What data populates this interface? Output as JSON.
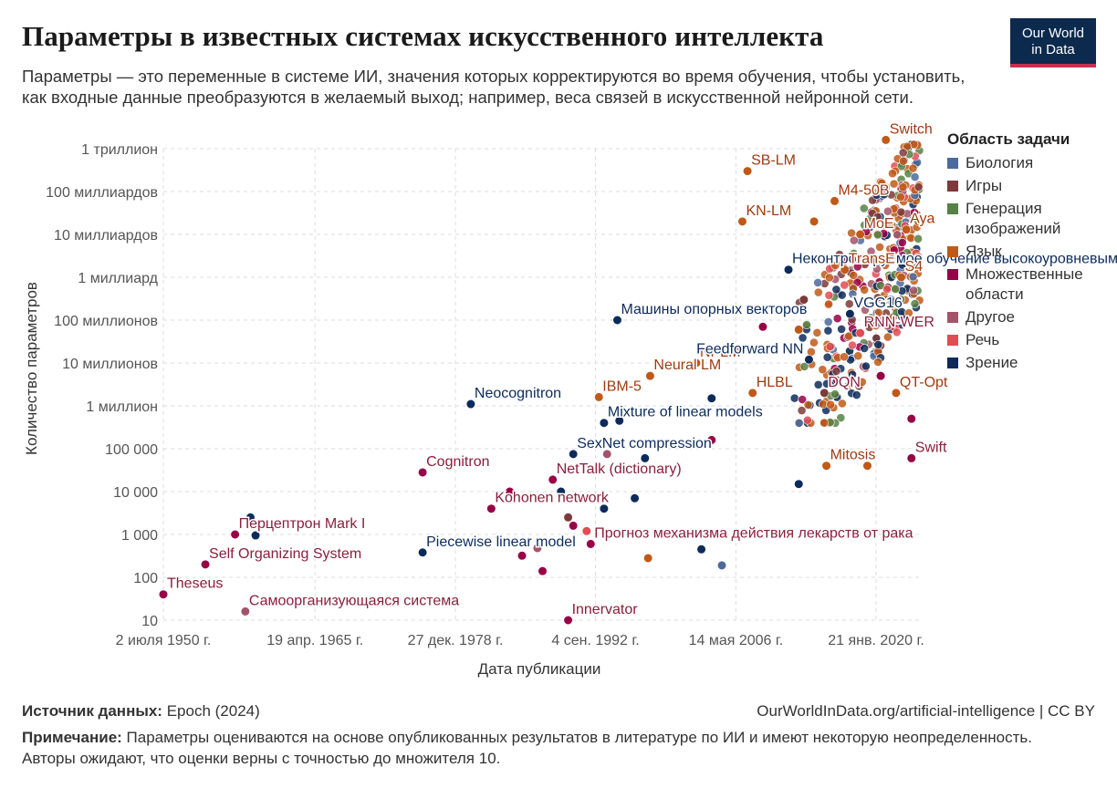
{
  "header": {
    "title": "Параметры в известных системах искусственного интеллекта",
    "subtitle": "Параметры — это переменные в системе ИИ, значения которых корректируются во время обучения, чтобы установить, как входные данные преобразуются в желаемый выход; например, веса связей в искусственной нейронной сети.",
    "logo_line1": "Our World",
    "logo_line2": "in Data",
    "logo_bg": "#0c2a4d",
    "logo_accent": "#c6314f"
  },
  "legend": {
    "title": "Область задачи",
    "items": [
      {
        "label": "Биология",
        "color": "#4c6a9c"
      },
      {
        "label": "Игры",
        "color": "#7d3a3a"
      },
      {
        "label": "Генерация изображений",
        "color": "#578145"
      },
      {
        "label": "Язык",
        "color": "#c05917"
      },
      {
        "label": "Множественные области",
        "color": "#970046"
      },
      {
        "label": "Другое",
        "color": "#a2546a"
      },
      {
        "label": "Речь",
        "color": "#e14b53"
      },
      {
        "label": "Зрение",
        "color": "#0d2b5a"
      }
    ]
  },
  "footer": {
    "source_label": "Источник данных:",
    "source_value": " Epoch (2024)",
    "url": "OurWorldInData.org/artificial-intelligence | CC BY",
    "note_label": "Примечание:",
    "note_value": " Параметры оцениваются на основе опубликованных результатов в литературе по ИИ и имеют некоторую неопределенность. Авторы ожидают, что оценки верны с точностью до множителя 10."
  },
  "chart_data": {
    "type": "scatter",
    "xlabel": "Дата публикации",
    "ylabel": "Количество параметров",
    "y_scale": "log",
    "ylim": [
      10,
      1000000000000
    ],
    "xlim": [
      1950.5,
      2024.5
    ],
    "x_ticks": [
      {
        "value": 1950.5,
        "label": "2 июля 1950 г."
      },
      {
        "value": 1965.3,
        "label": "19 апр. 1965 г."
      },
      {
        "value": 1979.0,
        "label": "27 дек. 1978 г."
      },
      {
        "value": 1992.67,
        "label": "4 сен. 1992 г."
      },
      {
        "value": 2006.37,
        "label": "14 мая 2006 г."
      },
      {
        "value": 2020.05,
        "label": "21 янв. 2020 г."
      }
    ],
    "y_ticks": [
      {
        "value": 10,
        "label": "10"
      },
      {
        "value": 100,
        "label": "100"
      },
      {
        "value": 1000,
        "label": "1 000"
      },
      {
        "value": 10000,
        "label": "10 000"
      },
      {
        "value": 100000,
        "label": "100 000"
      },
      {
        "value": 1000000,
        "label": "1 миллион"
      },
      {
        "value": 10000000,
        "label": "10 миллионов"
      },
      {
        "value": 100000000,
        "label": "100 миллионов"
      },
      {
        "value": 1000000000,
        "label": "1 миллиард"
      },
      {
        "value": 10000000000,
        "label": "10 миллиардов"
      },
      {
        "value": 100000000000,
        "label": "100 миллиардов"
      },
      {
        "value": 1000000000000,
        "label": "1 триллион"
      }
    ],
    "grid": true,
    "legend_position": "right",
    "points": [
      {
        "x": 1950.5,
        "y": 40,
        "domain": "Множественные области",
        "label": "Theseus"
      },
      {
        "x": 1954.6,
        "y": 200,
        "domain": "Множественные области",
        "label": "Self Organizing System"
      },
      {
        "x": 1957.5,
        "y": 1000,
        "domain": "Множественные области",
        "label": "Перцептрон Mark I"
      },
      {
        "x": 1958.5,
        "y": 16,
        "domain": "Другое",
        "label": "Самоорганизующаяся система"
      },
      {
        "x": 1959.0,
        "y": 2500,
        "domain": "Зрение"
      },
      {
        "x": 1959.5,
        "y": 950,
        "domain": "Зрение"
      },
      {
        "x": 1975.8,
        "y": 380,
        "domain": "Зрение",
        "label": "Piecewise linear model"
      },
      {
        "x": 1975.8,
        "y": 28000,
        "domain": "Множественные области",
        "label": "Cognitron"
      },
      {
        "x": 1980.5,
        "y": 1100000,
        "domain": "Зрение",
        "label": "Neocognitron"
      },
      {
        "x": 1982.5,
        "y": 4000,
        "domain": "Множественные области",
        "label": "Kohonen network"
      },
      {
        "x": 1984.3,
        "y": 10000,
        "domain": "Множественные области"
      },
      {
        "x": 1985.5,
        "y": 320,
        "domain": "Множественные области"
      },
      {
        "x": 1987.0,
        "y": 480,
        "domain": "Другое"
      },
      {
        "x": 1987.5,
        "y": 140,
        "domain": "Множественные области"
      },
      {
        "x": 1988.5,
        "y": 19000,
        "domain": "Множественные области",
        "label": "NetTalk (dictionary)"
      },
      {
        "x": 1989.3,
        "y": 10000,
        "domain": "Зрение"
      },
      {
        "x": 1990.0,
        "y": 10,
        "domain": "Множественные области",
        "label": "Innervator"
      },
      {
        "x": 1990.0,
        "y": 2500,
        "domain": "Игры"
      },
      {
        "x": 1990.5,
        "y": 75000,
        "domain": "Зрение",
        "label": "SexNet compression"
      },
      {
        "x": 1990.5,
        "y": 1600,
        "domain": "Множественные области"
      },
      {
        "x": 1991.8,
        "y": 1200,
        "domain": "Речь"
      },
      {
        "x": 1992.2,
        "y": 600,
        "domain": "Множественные области",
        "label": "Прогноз механизма действия лекарств от рака"
      },
      {
        "x": 1993.0,
        "y": 1600000,
        "domain": "Язык",
        "label": "IBM-5"
      },
      {
        "x": 1993.5,
        "y": 400000,
        "domain": "Зрение",
        "label": "Mixture of linear models"
      },
      {
        "x": 1993.5,
        "y": 4000,
        "domain": "Зрение"
      },
      {
        "x": 1993.8,
        "y": 75000,
        "domain": "Другое"
      },
      {
        "x": 1994.8,
        "y": 100000000,
        "domain": "Зрение",
        "label": "Машины опорных векторов"
      },
      {
        "x": 1995.0,
        "y": 450000,
        "domain": "Зрение"
      },
      {
        "x": 1996.5,
        "y": 7000,
        "domain": "Зрение"
      },
      {
        "x": 1997.5,
        "y": 60000,
        "domain": "Зрение"
      },
      {
        "x": 1997.8,
        "y": 280,
        "domain": "Язык"
      },
      {
        "x": 1998.0,
        "y": 5000000,
        "domain": "Язык",
        "label": "Neural LM"
      },
      {
        "x": 2002.5,
        "y": 10000000,
        "domain": "Язык",
        "label": "NPLM"
      },
      {
        "x": 2003.0,
        "y": 450,
        "domain": "Зрение"
      },
      {
        "x": 2004.0,
        "y": 1500000,
        "domain": "Зрение"
      },
      {
        "x": 2004.0,
        "y": 160000,
        "domain": "Множественные области"
      },
      {
        "x": 2005.0,
        "y": 190,
        "domain": "Биология"
      },
      {
        "x": 2007.0,
        "y": 20000000000,
        "domain": "Язык",
        "label": "KN-LM"
      },
      {
        "x": 2007.5,
        "y": 300000000000,
        "domain": "Язык",
        "label": "SB-LM"
      },
      {
        "x": 2008.0,
        "y": 2000000,
        "domain": "Язык",
        "label": "HLBL"
      },
      {
        "x": 2009.0,
        "y": 70000000,
        "domain": "Множественные области"
      },
      {
        "x": 2011.5,
        "y": 1500000000,
        "domain": "Зрение",
        "label": "Неконтролируемое обучение высокоуровневым признакам"
      },
      {
        "x": 2012.5,
        "y": 60000000,
        "domain": "Язык"
      },
      {
        "x": 2012.5,
        "y": 15000,
        "domain": "Зрение"
      },
      {
        "x": 2013.0,
        "y": 300000000,
        "domain": "Игры"
      },
      {
        "x": 2013.5,
        "y": 12000000,
        "domain": "Зрение",
        "label": "Feedforward NN"
      },
      {
        "x": 2014.0,
        "y": 20000000000,
        "domain": "Язык"
      },
      {
        "x": 2015.0,
        "y": 2000000,
        "domain": "Игры",
        "label": "DQN"
      },
      {
        "x": 2015.2,
        "y": 40000,
        "domain": "Язык",
        "label": "Mitosis"
      },
      {
        "x": 2016.0,
        "y": 60000000000,
        "domain": "Язык",
        "label": "M4-50B"
      },
      {
        "x": 2017.0,
        "y": 1500000000,
        "domain": "Язык",
        "label": "TransE"
      },
      {
        "x": 2017.5,
        "y": 140000000,
        "domain": "Зрение",
        "label": "VGG16"
      },
      {
        "x": 2018.5,
        "y": 10000000000,
        "domain": "Язык",
        "label": "MoE"
      },
      {
        "x": 2018.5,
        "y": 50000000,
        "domain": "Речь",
        "label": "RNN-WER"
      },
      {
        "x": 2019.2,
        "y": 40000,
        "domain": "Язык"
      },
      {
        "x": 2020.5,
        "y": 5000000,
        "domain": "Множественные области"
      },
      {
        "x": 2021.0,
        "y": 1600000000000,
        "domain": "Язык",
        "label": "Switch"
      },
      {
        "x": 2022.0,
        "y": 2000000,
        "domain": "Язык",
        "label": "QT-Opt"
      },
      {
        "x": 2022.5,
        "y": 1000000000,
        "domain": "Язык",
        "label": "S4"
      },
      {
        "x": 2023.0,
        "y": 13000000000,
        "domain": "Язык",
        "label": "Aya"
      },
      {
        "x": 2023.5,
        "y": 60000,
        "domain": "Множественные области",
        "label": "Swift"
      },
      {
        "x": 2023.5,
        "y": 500000,
        "domain": "Множественные области"
      }
    ]
  }
}
